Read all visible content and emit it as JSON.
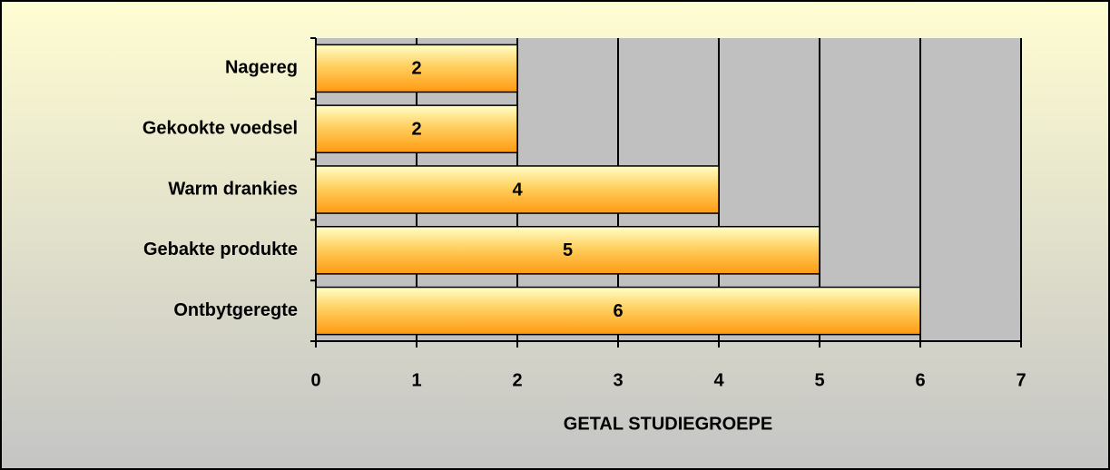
{
  "chart_data": {
    "type": "bar",
    "orientation": "horizontal",
    "categories": [
      "Nagereg",
      "Gekookte voedsel",
      "Warm drankies",
      "Gebakte produkte",
      "Ontbytgeregte"
    ],
    "values": [
      2,
      2,
      4,
      5,
      6
    ],
    "x_label": "GETAL STUDIEGROEPE",
    "xlim": [
      0,
      7
    ],
    "xticks": [
      0,
      1,
      2,
      3,
      4,
      5,
      6,
      7
    ],
    "grid": true
  }
}
